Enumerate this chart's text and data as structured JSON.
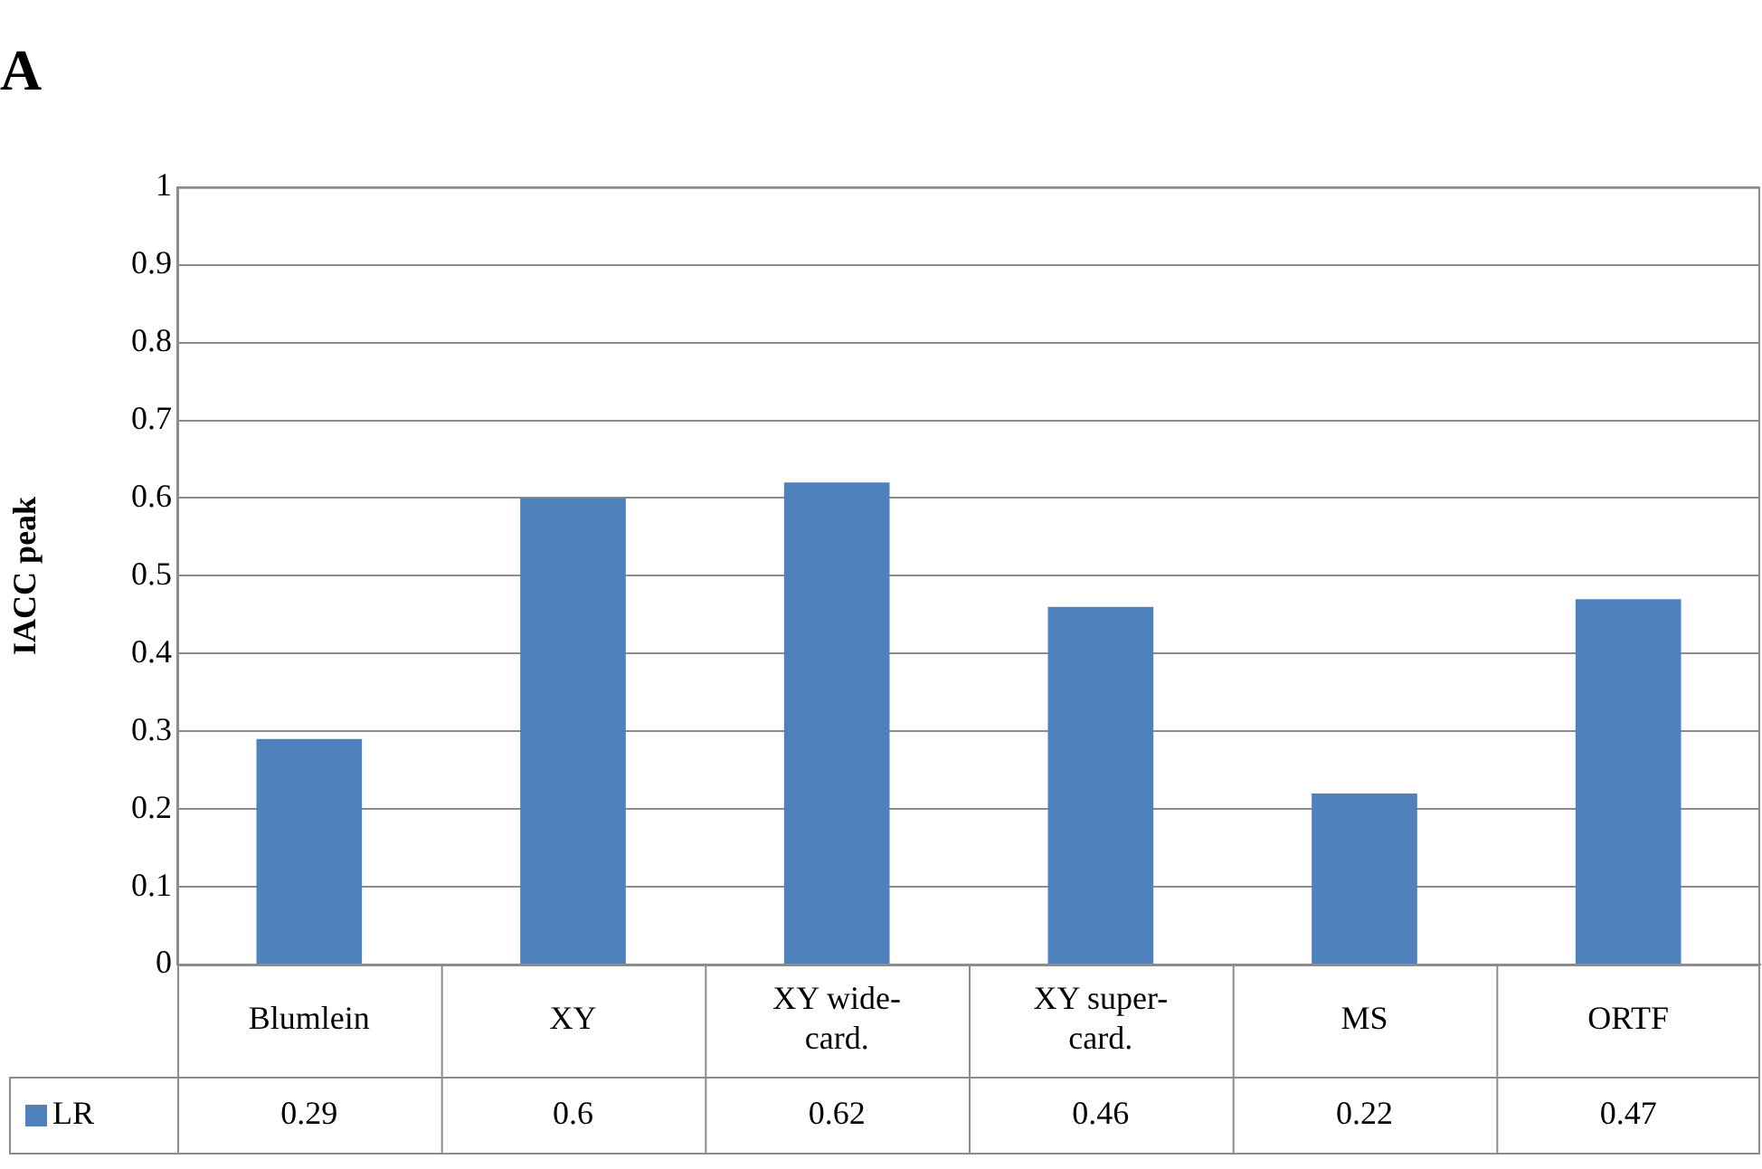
{
  "chart_data": {
    "type": "bar",
    "title": "A",
    "ylabel": "IACC peak",
    "categories": [
      "Blumlein",
      "XY",
      "XY wide-card.",
      "XY super-card.",
      "MS",
      "ORTF"
    ],
    "series": [
      {
        "name": "LR",
        "color": "#4f81bd",
        "values": [
          0.29,
          0.6,
          0.62,
          0.46,
          0.22,
          0.47
        ]
      }
    ],
    "ylim": [
      0,
      1
    ],
    "yticks": [
      0,
      0.1,
      0.2,
      0.3,
      0.4,
      0.5,
      0.6,
      0.7,
      0.8,
      0.9,
      1
    ],
    "grid": "y",
    "legend": "bottom left",
    "data_labels": true
  }
}
